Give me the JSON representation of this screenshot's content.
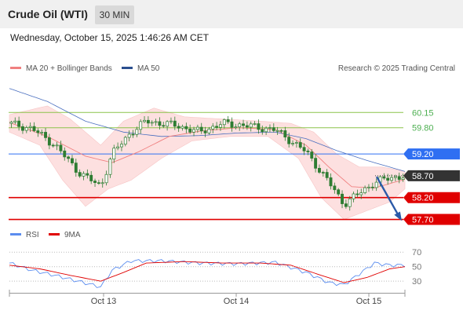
{
  "header": {
    "instrument": "Crude Oil (WTI)",
    "timeframe": "30 MIN",
    "datetime": "Wednesday, October 15, 2025 1:46:26 AM CET"
  },
  "legend": {
    "ma20_label": "MA 20 + Bollinger Bands",
    "ma50_label": "MA 50",
    "credit": "Research © 2025 Trading Central",
    "rsi_label": "RSI",
    "ma9_label": "9MA"
  },
  "colors": {
    "ma20": "#f08080",
    "ma50": "#4a6fbf",
    "bollinger_fill": "#fde0e0",
    "candles": "#2e7d32",
    "resistance_green": "#8bc34a",
    "pivot_blue": "#2f6ff2",
    "support_red": "#e00000",
    "last_price": "#333333",
    "forecast_arrow": "#2b5aa8",
    "rsi": "#5b8def",
    "rsi_ma": "#e00000"
  },
  "chart_data": {
    "type": "candlestick",
    "y_range": [
      57.62,
      60.55
    ],
    "x_labels": [
      "Oct 13",
      "Oct 14",
      "Oct 15"
    ],
    "levels": [
      {
        "value": 60.15,
        "label": "60.15",
        "kind": "resistance"
      },
      {
        "value": 59.8,
        "label": "59.80",
        "kind": "resistance"
      },
      {
        "value": 59.2,
        "label": "59.20",
        "kind": "pivot"
      },
      {
        "value": 58.7,
        "label": "58.70",
        "kind": "last"
      },
      {
        "value": 58.2,
        "label": "58.20",
        "kind": "support"
      },
      {
        "value": 57.7,
        "label": "57.70",
        "kind": "support"
      }
    ],
    "forecast": {
      "from": 58.68,
      "to": 57.72
    },
    "close_path": [
      [
        0,
        59.9
      ],
      [
        6,
        59.78
      ],
      [
        12,
        59.4
      ],
      [
        18,
        58.8
      ],
      [
        24,
        58.45
      ],
      [
        27,
        59.2
      ],
      [
        32,
        59.7
      ],
      [
        36,
        59.95
      ],
      [
        44,
        59.85
      ],
      [
        50,
        59.7
      ],
      [
        56,
        59.9
      ],
      [
        62,
        59.85
      ],
      [
        70,
        59.75
      ],
      [
        78,
        59.25
      ],
      [
        84,
        58.55
      ],
      [
        88,
        58.05
      ],
      [
        92,
        58.3
      ],
      [
        96,
        58.55
      ],
      [
        100,
        58.65
      ],
      [
        104,
        58.7
      ]
    ],
    "ma20_path": [
      [
        0,
        59.92
      ],
      [
        10,
        59.6
      ],
      [
        20,
        59.15
      ],
      [
        27,
        59.0
      ],
      [
        34,
        59.25
      ],
      [
        42,
        59.6
      ],
      [
        50,
        59.72
      ],
      [
        60,
        59.8
      ],
      [
        70,
        59.76
      ],
      [
        78,
        59.4
      ],
      [
        84,
        58.9
      ],
      [
        90,
        58.45
      ],
      [
        96,
        58.42
      ],
      [
        104,
        58.62
      ]
    ],
    "ma50_path": [
      [
        0,
        60.7
      ],
      [
        10,
        60.4
      ],
      [
        20,
        59.95
      ],
      [
        30,
        59.7
      ],
      [
        40,
        59.6
      ],
      [
        50,
        59.62
      ],
      [
        60,
        59.68
      ],
      [
        70,
        59.7
      ],
      [
        78,
        59.55
      ],
      [
        86,
        59.28
      ],
      [
        94,
        59.05
      ],
      [
        104,
        58.8
      ]
    ],
    "bb_upper_path": [
      [
        0,
        60.1
      ],
      [
        10,
        60.3
      ],
      [
        16,
        60.0
      ],
      [
        24,
        59.4
      ],
      [
        30,
        59.95
      ],
      [
        38,
        60.25
      ],
      [
        46,
        60.05
      ],
      [
        56,
        60.0
      ],
      [
        66,
        59.95
      ],
      [
        74,
        59.9
      ],
      [
        80,
        59.7
      ],
      [
        86,
        59.2
      ],
      [
        92,
        58.9
      ],
      [
        98,
        58.9
      ],
      [
        104,
        58.8
      ]
    ],
    "bb_lower_path": [
      [
        0,
        59.7
      ],
      [
        8,
        59.4
      ],
      [
        14,
        58.6
      ],
      [
        20,
        58.0
      ],
      [
        26,
        58.4
      ],
      [
        32,
        58.6
      ],
      [
        40,
        59.1
      ],
      [
        48,
        59.5
      ],
      [
        58,
        59.6
      ],
      [
        68,
        59.6
      ],
      [
        76,
        59.1
      ],
      [
        82,
        58.2
      ],
      [
        88,
        57.7
      ],
      [
        94,
        57.9
      ],
      [
        100,
        58.1
      ],
      [
        104,
        58.4
      ]
    ],
    "rsi": {
      "levels": [
        70,
        50,
        30
      ],
      "y_range": [
        15,
        80
      ],
      "rsi_path": [
        [
          0,
          55
        ],
        [
          6,
          45
        ],
        [
          12,
          38
        ],
        [
          18,
          30
        ],
        [
          24,
          22
        ],
        [
          27,
          45
        ],
        [
          32,
          58
        ],
        [
          40,
          58
        ],
        [
          50,
          55
        ],
        [
          60,
          54
        ],
        [
          70,
          56
        ],
        [
          78,
          42
        ],
        [
          84,
          28
        ],
        [
          88,
          25
        ],
        [
          92,
          40
        ],
        [
          96,
          55
        ],
        [
          100,
          52
        ],
        [
          104,
          52
        ]
      ],
      "ma9_path": [
        [
          0,
          52
        ],
        [
          8,
          47
        ],
        [
          16,
          38
        ],
        [
          24,
          30
        ],
        [
          30,
          42
        ],
        [
          36,
          55
        ],
        [
          46,
          57
        ],
        [
          56,
          55
        ],
        [
          66,
          55
        ],
        [
          74,
          52
        ],
        [
          82,
          38
        ],
        [
          88,
          28
        ],
        [
          94,
          35
        ],
        [
          100,
          47
        ],
        [
          104,
          50
        ]
      ]
    }
  }
}
